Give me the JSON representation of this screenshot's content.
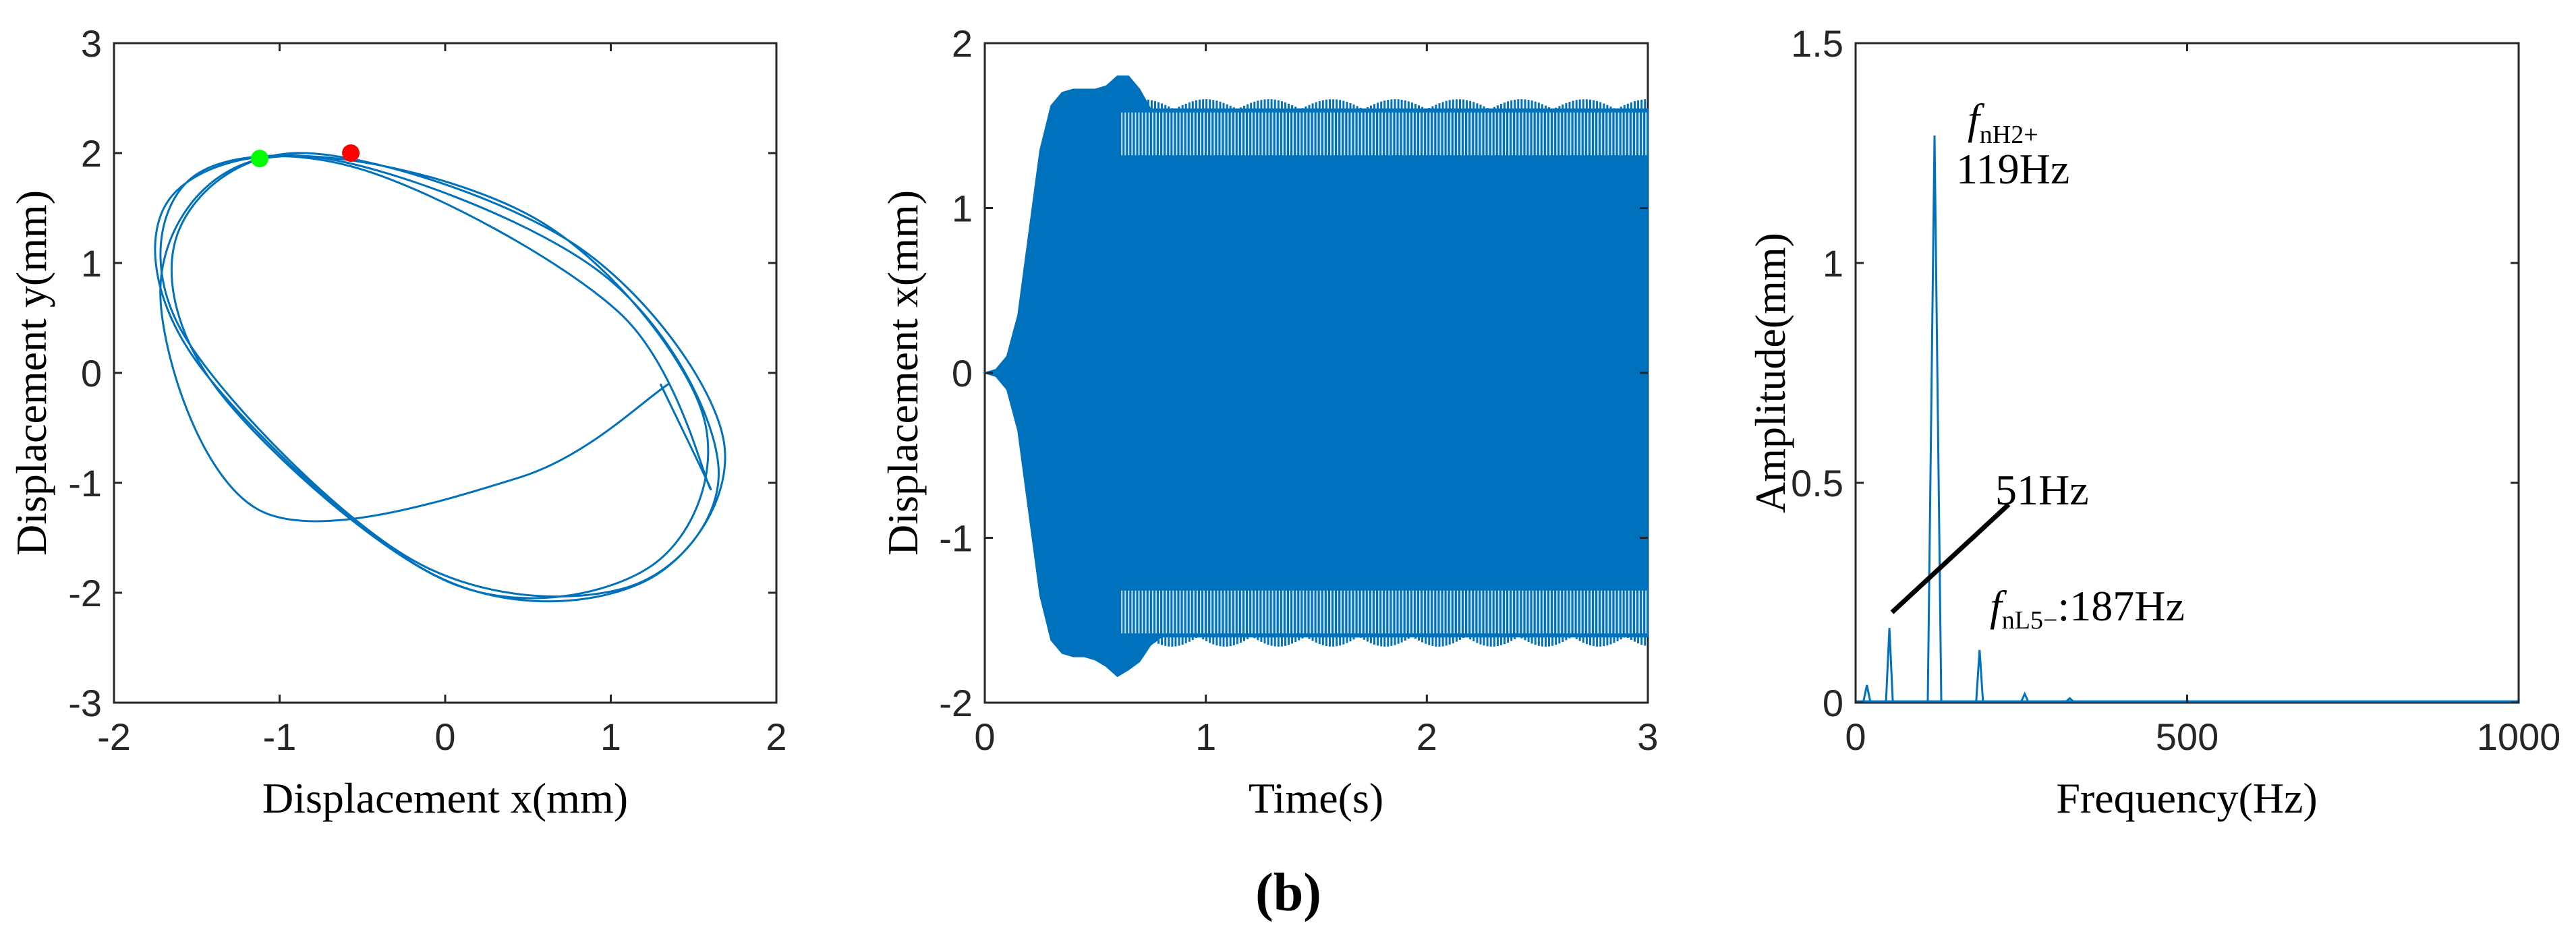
{
  "figure_label": "(b)",
  "chart_data": [
    {
      "type": "line",
      "panel": "orbit",
      "xlabel": "Displacement x(mm)",
      "ylabel": "Displacement y(mm)",
      "xlim": [
        -2,
        2
      ],
      "ylim": [
        -3,
        3
      ],
      "xticks": [
        "-2",
        "-1",
        "0",
        "1",
        "2"
      ],
      "yticks": [
        "-3",
        "-2",
        "-1",
        "0",
        "1",
        "2",
        "3"
      ],
      "grid": false,
      "series": [
        {
          "x": [
            1.35,
            0.45,
            -1.12,
            -1.72,
            -1.1,
            0.55,
            1.55,
            1.25,
            0.05,
            -1.35,
            -1.62,
            -0.85,
            0.8,
            1.68,
            1.2,
            -0.05,
            -1.5,
            -1.68,
            -0.72,
            0.95,
            1.65,
            1.1,
            -0.2,
            -1.58,
            -1.55,
            -0.5,
            1.05,
            1.6,
            1.3
          ],
          "y": [
            -0.1,
            -0.95,
            -1.25,
            0.75,
            1.95,
            1.4,
            -0.35,
            -1.75,
            -1.92,
            -0.2,
            1.25,
            2.0,
            1.15,
            -0.6,
            -1.9,
            -1.85,
            0.1,
            1.55,
            1.95,
            0.9,
            -0.85,
            -1.95,
            -1.7,
            0.35,
            1.75,
            1.85,
            0.55,
            -1.05,
            -0.1
          ]
        }
      ],
      "markers": [
        {
          "x": -1.12,
          "y": 1.95,
          "color": "#00FF00"
        },
        {
          "x": -0.57,
          "y": 2.0,
          "color": "#FF0000"
        }
      ]
    },
    {
      "type": "line",
      "panel": "time",
      "xlabel": "Time(s)",
      "ylabel": "Displacement x(mm)",
      "xlim": [
        0,
        3
      ],
      "ylim": [
        -2,
        2
      ],
      "xticks": [
        "0",
        "1",
        "2",
        "3"
      ],
      "yticks": [
        "-2",
        "-1",
        "0",
        "1",
        "2"
      ],
      "grid": false,
      "series": [
        {
          "x": [
            0,
            0.05,
            0.1,
            0.15,
            0.2,
            0.25,
            0.3,
            0.35,
            0.4,
            0.45,
            0.5,
            0.55,
            0.6,
            0.65,
            0.7,
            0.75,
            0.8,
            1.0,
            1.5,
            2.0,
            2.5,
            3.0
          ],
          "y": [
            0,
            0.02,
            0.1,
            0.35,
            0.85,
            1.35,
            1.62,
            1.7,
            1.72,
            1.72,
            1.72,
            1.74,
            1.8,
            1.8,
            1.72,
            1.6,
            1.6,
            1.6,
            1.6,
            1.6,
            1.6,
            1.6
          ],
          "ymin": [
            0,
            -0.02,
            -0.1,
            -0.35,
            -0.85,
            -1.35,
            -1.62,
            -1.7,
            -1.72,
            -1.72,
            -1.74,
            -1.78,
            -1.84,
            -1.8,
            -1.75,
            -1.65,
            -1.6,
            -1.6,
            -1.6,
            -1.6,
            -1.6,
            -1.6
          ]
        }
      ]
    },
    {
      "type": "line",
      "panel": "spectrum",
      "xlabel": "Frequency(Hz)",
      "ylabel": "Amplitude(mm)",
      "xlim": [
        0,
        1000
      ],
      "ylim": [
        0,
        1.5
      ],
      "xticks": [
        "0",
        "500",
        "1000"
      ],
      "yticks": [
        "0",
        "0.5",
        "1",
        "1.5"
      ],
      "grid": false,
      "series": [
        {
          "x": [
            17,
            51,
            119,
            187,
            255,
            323
          ],
          "y": [
            0.04,
            0.17,
            1.29,
            0.12,
            0.02,
            0.01
          ]
        }
      ],
      "annotations": [
        {
          "main": "f",
          "sub": "nH2+",
          "line2": "119Hz"
        },
        {
          "main": "51Hz"
        },
        {
          "main": "f",
          "sub": "nL5−",
          "suffix": ":187Hz"
        }
      ]
    }
  ]
}
